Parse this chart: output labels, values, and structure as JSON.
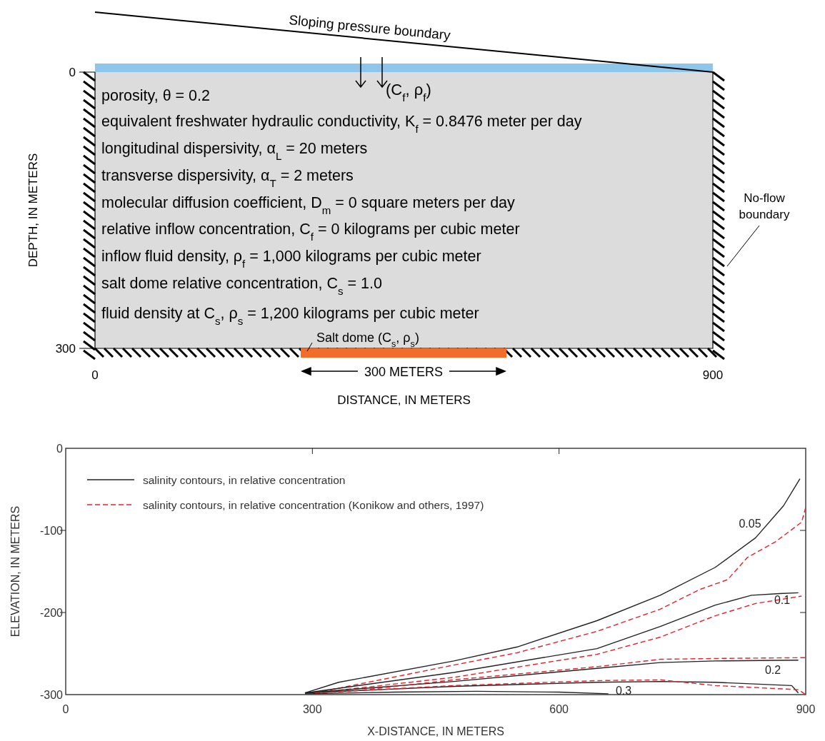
{
  "chart_data": [
    {
      "type": "other",
      "xlabel": "DISTANCE, IN METERS",
      "ylabel": "DEPTH, IN METERS",
      "annotations": [
        "Sloping pressure boundary",
        "(C$_{f}$, ρ$_{f}$)",
        "porosity, θ = 0.2",
        "equivalent freshwater hydraulic conductivity, K$_{f}$ = 0.8476 meter per day",
        "longitudinal dispersivity, α$_{L}$ = 20 meters",
        "transverse dispersivity, α$_{T}$ = 2 meters",
        "molecular diffusion coefficient, D$_{m}$ = 0 square meters per day",
        "relative inflow concentration, C$_{f}$ = 0 kilograms per cubic meter",
        "inflow fluid density, ρ$_{f}$ = 1,000 kilograms per cubic meter",
        "salt dome relative concentration, C$_{s}$ = 1.0",
        "fluid density at C$_{s}$, ρ$_{s}$ = 1,200 kilograms per cubic meter",
        "No-flow boundary",
        "300 METERS",
        "Salt dome (C$_{s}$, ρ$_{s}$)",
        "0",
        "900",
        "0",
        "300"
      ]
    },
    {
      "type": "line",
      "xlabel": "X-DISTANCE, IN METERS",
      "ylabel": "ELEVATION, IN METERS",
      "xlim": [
        0,
        900
      ],
      "ylim": [
        -300,
        0
      ],
      "xticks": [
        0,
        300,
        600,
        900
      ],
      "yticks": [
        0,
        -100,
        -200,
        -300
      ],
      "legend": "top left",
      "grid": false,
      "series": [
        {
          "name": "salinity contours, in relative concentration",
          "color": "#222222",
          "line_style": "solid",
          "x": [
            291,
            332,
            472,
            549,
            646,
            723,
            790,
            839,
            873,
            893
          ],
          "values": [
            -298,
            -285,
            -259,
            -242,
            -210,
            -179,
            -145,
            -109,
            -70,
            -37
          ]
        },
        {
          "name": "salinity contours, in relative concentration (Konikow and others, 1997)",
          "color": "#e8202a",
          "line_style": "dashed",
          "x": [
            303,
            472,
            549,
            646,
            723,
            771,
            805,
            829,
            863,
            895,
            900
          ],
          "values": [
            -298,
            -264,
            -249,
            -223,
            -196,
            -172,
            -160,
            -133,
            -114,
            -90,
            -72
          ]
        },
        {
          "color": "#222222",
          "line_style": "solid",
          "x": [
            291,
            472,
            646,
            723,
            790,
            834,
            868,
            891
          ],
          "values": [
            -298,
            -273,
            -244,
            -217,
            -191,
            -179,
            -177,
            -176
          ]
        },
        {
          "color": "#e8202a",
          "line_style": "dashed",
          "x": [
            303,
            472,
            646,
            723,
            790,
            839,
            895
          ],
          "values": [
            -298,
            -279,
            -251,
            -230,
            -204,
            -189,
            -180
          ]
        },
        {
          "color": "#222222",
          "line_style": "solid",
          "x": [
            291,
            472,
            646,
            723,
            790,
            891
          ],
          "values": [
            -298,
            -284,
            -268,
            -261,
            -259,
            -258
          ]
        },
        {
          "color": "#e8202a",
          "line_style": "dashed",
          "x": [
            303,
            356,
            472,
            646,
            723,
            790,
            900
          ],
          "values": [
            -298,
            -295,
            -282,
            -266,
            -257,
            -256,
            -255
          ]
        },
        {
          "color": "#222222",
          "line_style": "solid",
          "x": [
            291,
            472,
            646,
            723,
            790,
            883,
            891
          ],
          "values": [
            -298,
            -290,
            -285,
            -284,
            -285,
            -289,
            -298
          ]
        },
        {
          "color": "#e8202a",
          "line_style": "dashed",
          "x": [
            303,
            472,
            646,
            723,
            790,
            891,
            900
          ],
          "values": [
            -298,
            -289,
            -283,
            -282,
            -289,
            -294,
            -300
          ]
        },
        {
          "color": "#222222",
          "line_style": "solid",
          "x": [
            291,
            400,
            500,
            600,
            660
          ],
          "values": [
            -299,
            -297,
            -296,
            -297,
            -299
          ]
        }
      ],
      "annotations": [
        "0.05",
        "0.1",
        "0.2",
        "0.3"
      ]
    }
  ]
}
